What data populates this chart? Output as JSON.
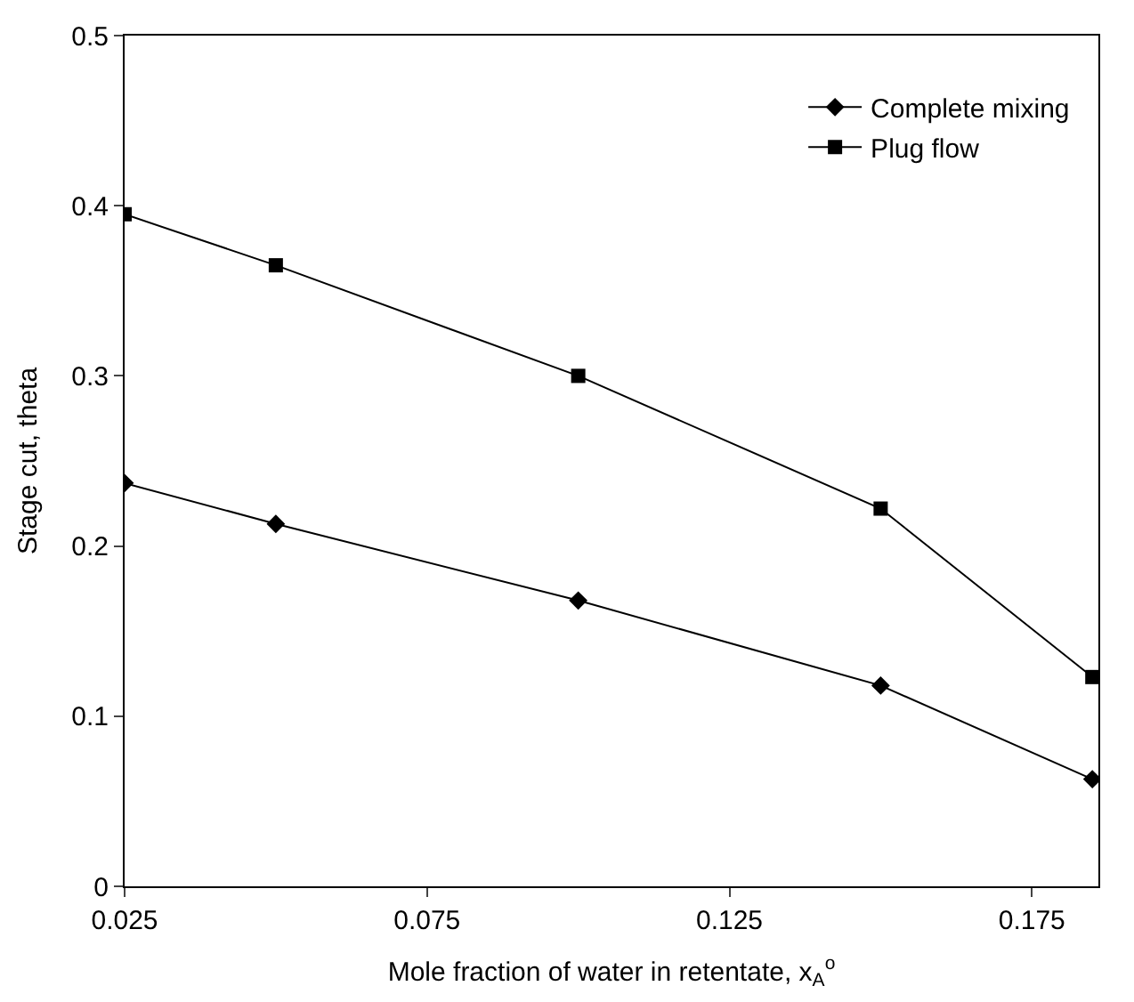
{
  "chart_data": {
    "type": "line",
    "xlabel": "Mole fraction of water in retentate, x$_{A}$$^{o}$",
    "ylabel": "Stage cut, theta",
    "x": [
      0.025,
      0.05,
      0.1,
      0.15,
      0.185
    ],
    "series": [
      {
        "name": "Complete mixing",
        "color": "#000000",
        "marker": "diamond",
        "values": [
          0.237,
          0.213,
          0.168,
          0.118,
          0.063
        ]
      },
      {
        "name": "Plug flow",
        "color": "#000000",
        "marker": "square",
        "values": [
          0.395,
          0.365,
          0.3,
          0.222,
          0.123
        ]
      }
    ],
    "xlim": [
      0.025,
      0.186
    ],
    "xticks": [
      0.025,
      0.075,
      0.125,
      0.175
    ],
    "ylim": [
      0,
      0.5
    ],
    "yticks": [
      0,
      0.1,
      0.2,
      0.3,
      0.4,
      0.5
    ],
    "legend": "top right",
    "line_style": "solid"
  }
}
